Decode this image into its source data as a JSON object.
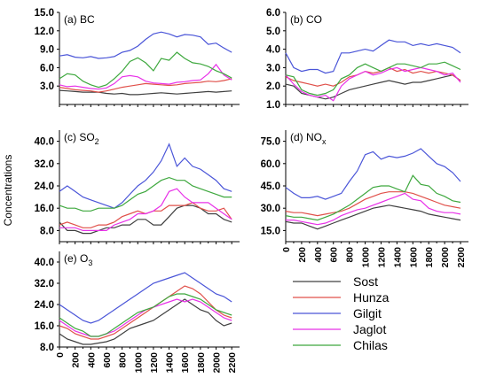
{
  "figure": {
    "ylabel": "Concentrations"
  },
  "legend": {
    "entries": [
      {
        "name": "Sost",
        "color": "#404040"
      },
      {
        "name": "Hunza",
        "color": "#e0504a"
      },
      {
        "name": "Gilgit",
        "color": "#4a55d8"
      },
      {
        "name": "Jaglot",
        "color": "#e832e8"
      },
      {
        "name": "Chilas",
        "color": "#3ea83e"
      }
    ]
  },
  "chart_data": [
    {
      "type": "line",
      "title": "(a) BC",
      "x": [
        0,
        100,
        200,
        300,
        400,
        500,
        600,
        700,
        800,
        900,
        1000,
        1100,
        1200,
        1300,
        1400,
        1500,
        1600,
        1700,
        1800,
        1900,
        2000,
        2100,
        2200
      ],
      "xlim": [
        0,
        2300
      ],
      "ylim": [
        0,
        15
      ],
      "yticks": [
        3.0,
        6.0,
        9.0,
        12.0,
        15.0
      ],
      "ytick_labels": [
        "3.0",
        "6.0",
        "9.0",
        "12.0",
        "15.0"
      ],
      "show_xticks": false,
      "series": [
        {
          "name": "Sost",
          "values": [
            2.3,
            2.2,
            2.1,
            2.0,
            2.0,
            2.0,
            1.8,
            1.7,
            1.8,
            1.6,
            1.6,
            1.7,
            1.8,
            1.9,
            1.8,
            1.7,
            1.8,
            1.9,
            2.0,
            2.1,
            2.0,
            2.1,
            2.2
          ]
        },
        {
          "name": "Hunza",
          "values": [
            2.8,
            2.6,
            2.4,
            2.3,
            2.2,
            2.0,
            2.2,
            2.5,
            2.8,
            3.0,
            3.2,
            3.4,
            3.3,
            3.2,
            3.1,
            3.2,
            3.4,
            3.5,
            3.6,
            3.8,
            3.7,
            3.9,
            4.2
          ]
        },
        {
          "name": "Gilgit",
          "values": [
            7.9,
            8.1,
            7.7,
            7.6,
            7.8,
            7.5,
            7.6,
            7.8,
            8.5,
            8.8,
            9.5,
            10.6,
            11.5,
            11.8,
            11.5,
            11.0,
            11.4,
            11.3,
            11.0,
            9.8,
            10.0,
            9.2,
            8.5
          ]
        },
        {
          "name": "Jaglot",
          "values": [
            3.2,
            2.9,
            3.0,
            2.8,
            2.6,
            2.5,
            2.7,
            3.4,
            4.5,
            4.7,
            4.5,
            3.8,
            3.5,
            3.4,
            3.3,
            3.6,
            3.7,
            3.9,
            4.0,
            5.0,
            6.5,
            4.8,
            4.0
          ]
        },
        {
          "name": "Chilas",
          "values": [
            4.2,
            5.0,
            4.8,
            3.8,
            3.2,
            2.8,
            3.2,
            4.2,
            5.4,
            7.0,
            7.6,
            6.8,
            5.5,
            7.5,
            7.2,
            8.5,
            7.5,
            6.8,
            6.6,
            6.2,
            5.5,
            5.0,
            4.3
          ]
        }
      ]
    },
    {
      "type": "line",
      "title": "(b) CO",
      "x": [
        0,
        100,
        200,
        300,
        400,
        500,
        600,
        700,
        800,
        900,
        1000,
        1100,
        1200,
        1300,
        1400,
        1500,
        1600,
        1700,
        1800,
        1900,
        2000,
        2100,
        2200
      ],
      "xlim": [
        0,
        2300
      ],
      "ylim": [
        1,
        6
      ],
      "yticks": [
        1.0,
        2.0,
        3.0,
        4.0,
        5.0,
        6.0
      ],
      "ytick_labels": [
        "1.0",
        "2.0",
        "3.0",
        "4.0",
        "5.0",
        "6.0"
      ],
      "show_xticks": false,
      "series": [
        {
          "name": "Sost",
          "values": [
            2.1,
            2.0,
            1.6,
            1.5,
            1.4,
            1.3,
            1.4,
            1.6,
            1.8,
            1.9,
            2.0,
            2.1,
            2.2,
            2.3,
            2.2,
            2.1,
            2.2,
            2.2,
            2.3,
            2.4,
            2.5,
            2.6,
            2.3
          ]
        },
        {
          "name": "Hunza",
          "values": [
            2.5,
            2.3,
            2.2,
            2.1,
            2.0,
            2.1,
            2.0,
            2.2,
            2.5,
            2.6,
            2.8,
            2.7,
            2.8,
            3.0,
            2.8,
            2.9,
            2.7,
            2.8,
            2.7,
            2.8,
            2.7,
            2.6,
            2.3
          ]
        },
        {
          "name": "Gilgit",
          "values": [
            3.8,
            3.0,
            2.8,
            2.9,
            2.9,
            2.7,
            2.8,
            3.8,
            3.8,
            3.9,
            4.0,
            3.9,
            4.2,
            4.5,
            4.4,
            4.4,
            4.2,
            4.3,
            4.2,
            4.3,
            4.2,
            4.1,
            3.8
          ]
        },
        {
          "name": "Jaglot",
          "values": [
            2.6,
            2.1,
            1.7,
            1.5,
            1.4,
            1.5,
            1.2,
            2.0,
            2.4,
            2.6,
            2.8,
            2.6,
            2.7,
            2.9,
            3.0,
            2.8,
            2.9,
            3.0,
            2.9,
            2.8,
            2.6,
            2.7,
            2.2
          ]
        },
        {
          "name": "Chilas",
          "values": [
            2.6,
            2.5,
            1.8,
            1.6,
            1.5,
            1.6,
            1.8,
            2.4,
            2.6,
            3.0,
            3.2,
            3.0,
            2.8,
            3.0,
            3.2,
            3.2,
            3.1,
            3.0,
            3.2,
            3.2,
            3.3,
            3.1,
            2.9
          ]
        }
      ]
    },
    {
      "type": "line",
      "title": "(c) SO2",
      "x": [
        0,
        100,
        200,
        300,
        400,
        500,
        600,
        700,
        800,
        900,
        1000,
        1100,
        1200,
        1300,
        1400,
        1500,
        1600,
        1700,
        1800,
        1900,
        2000,
        2100,
        2200
      ],
      "xlim": [
        0,
        2300
      ],
      "ylim": [
        4,
        44
      ],
      "yticks": [
        8.0,
        16.0,
        24.0,
        32.0,
        40.0
      ],
      "ytick_labels": [
        "8.0",
        "16.0",
        "24.0",
        "32.0",
        "40.0"
      ],
      "show_xticks": false,
      "series": [
        {
          "name": "Sost",
          "values": [
            11,
            8,
            8,
            7,
            7,
            8,
            9,
            9,
            10,
            10,
            12,
            12,
            10,
            10,
            13,
            16,
            17,
            17,
            16,
            14,
            14,
            12,
            11
          ]
        },
        {
          "name": "Hunza",
          "values": [
            10,
            11,
            10,
            9,
            9,
            10,
            10,
            11,
            13,
            14,
            15,
            14,
            15,
            15,
            17,
            17,
            17,
            18,
            16,
            15,
            15,
            16,
            12
          ]
        },
        {
          "name": "Gilgit",
          "values": [
            22,
            24,
            22,
            20,
            19,
            18,
            17,
            16,
            18,
            21,
            24,
            26,
            29,
            33,
            39,
            31,
            34,
            31,
            30,
            28,
            26,
            23,
            22
          ]
        },
        {
          "name": "Jaglot",
          "values": [
            9,
            9,
            9,
            8,
            8,
            8,
            8,
            10,
            11,
            12,
            14,
            14,
            15,
            17,
            22,
            23,
            20,
            18,
            18,
            18,
            16,
            14,
            12
          ]
        },
        {
          "name": "Chilas",
          "values": [
            17,
            16,
            16,
            15,
            15,
            16,
            16,
            16,
            17,
            19,
            21,
            22,
            24,
            26,
            27,
            26,
            26,
            24,
            23,
            22,
            21,
            20,
            20
          ]
        }
      ]
    },
    {
      "type": "line",
      "title": "(d) NOx",
      "x": [
        0,
        100,
        200,
        300,
        400,
        500,
        600,
        700,
        800,
        900,
        1000,
        1100,
        1200,
        1300,
        1400,
        1500,
        1600,
        1700,
        1800,
        1900,
        2000,
        2100,
        2200
      ],
      "xlim": [
        0,
        2300
      ],
      "ylim": [
        7.5,
        82.5
      ],
      "yticks": [
        15.0,
        30.0,
        45.0,
        60.0,
        75.0
      ],
      "ytick_labels": [
        "15.0",
        "30.0",
        "45.0",
        "60.0",
        "75.0"
      ],
      "show_xticks": true,
      "xticks": [
        0,
        200,
        400,
        600,
        800,
        1000,
        1200,
        1400,
        1600,
        1800,
        2000,
        2200
      ],
      "xtick_labels": [
        "0",
        "200",
        "400",
        "600",
        "800",
        "1000",
        "1200",
        "1400",
        "1600",
        "1800",
        "2000",
        "2200"
      ],
      "series": [
        {
          "name": "Sost",
          "values": [
            21,
            20,
            20,
            18,
            16,
            18,
            20,
            22,
            24,
            26,
            28,
            30,
            31,
            32,
            31,
            30,
            29,
            28,
            26,
            25,
            24,
            23,
            22
          ]
        },
        {
          "name": "Hunza",
          "values": [
            28,
            27,
            27,
            26,
            25,
            26,
            27,
            28,
            30,
            33,
            36,
            38,
            40,
            41,
            41,
            41,
            40,
            38,
            36,
            34,
            32,
            31,
            30
          ]
        },
        {
          "name": "Gilgit",
          "values": [
            44,
            40,
            37,
            37,
            38,
            36,
            38,
            40,
            48,
            55,
            66,
            68,
            63,
            65,
            64,
            65,
            67,
            70,
            65,
            60,
            58,
            54,
            48
          ]
        },
        {
          "name": "Jaglot",
          "values": [
            22,
            22,
            21,
            20,
            19,
            20,
            22,
            25,
            27,
            29,
            30,
            32,
            34,
            36,
            38,
            40,
            36,
            35,
            30,
            28,
            27,
            27,
            26
          ]
        },
        {
          "name": "Chilas",
          "values": [
            25,
            24,
            24,
            23,
            22,
            24,
            26,
            29,
            32,
            36,
            40,
            44,
            45,
            45,
            43,
            41,
            52,
            46,
            45,
            40,
            38,
            35,
            34
          ]
        }
      ]
    },
    {
      "type": "line",
      "title": "(e) O3",
      "x": [
        0,
        100,
        200,
        300,
        400,
        500,
        600,
        700,
        800,
        900,
        1000,
        1100,
        1200,
        1300,
        1400,
        1500,
        1600,
        1700,
        1800,
        1900,
        2000,
        2100,
        2200
      ],
      "xlim": [
        0,
        2300
      ],
      "ylim": [
        8,
        44
      ],
      "yticks": [
        8.0,
        16.0,
        24.0,
        32.0,
        40.0
      ],
      "ytick_labels": [
        "8.0",
        "16.0",
        "24.0",
        "32.0",
        "40.0"
      ],
      "show_xticks": true,
      "xticks": [
        0,
        200,
        400,
        600,
        800,
        1000,
        1200,
        1400,
        1600,
        1800,
        2000,
        2200
      ],
      "xtick_labels": [
        "0",
        "200",
        "400",
        "600",
        "800",
        "1000",
        "1200",
        "1400",
        "1600",
        "1800",
        "2000",
        "2200"
      ],
      "series": [
        {
          "name": "Sost",
          "values": [
            13,
            11,
            10,
            9,
            9,
            9.5,
            10,
            11,
            13,
            15,
            16,
            17,
            18,
            20,
            22,
            24,
            26,
            24,
            22,
            21,
            18,
            16,
            17
          ]
        },
        {
          "name": "Hunza",
          "values": [
            16,
            15,
            13,
            12,
            11,
            11,
            12,
            13,
            15,
            17,
            19,
            21,
            23,
            25,
            27,
            29,
            31,
            30,
            28,
            25,
            22,
            20,
            19
          ]
        },
        {
          "name": "Gilgit",
          "values": [
            24,
            22,
            20,
            18,
            17,
            18,
            20,
            22,
            24,
            26,
            28,
            30,
            32,
            33,
            34,
            35,
            36,
            34,
            32,
            30,
            28,
            27,
            25
          ]
        },
        {
          "name": "Jaglot",
          "values": [
            18,
            16,
            14,
            13,
            12,
            12,
            13,
            14,
            16,
            18,
            20,
            22,
            23,
            24,
            25,
            26,
            25,
            26,
            25,
            23,
            21,
            19,
            18
          ]
        },
        {
          "name": "Chilas",
          "values": [
            19,
            17,
            15,
            14,
            12,
            12,
            13,
            15,
            17,
            19,
            21,
            22,
            23,
            25,
            27,
            28,
            28,
            27,
            26,
            24,
            22,
            21,
            20
          ]
        }
      ]
    }
  ]
}
